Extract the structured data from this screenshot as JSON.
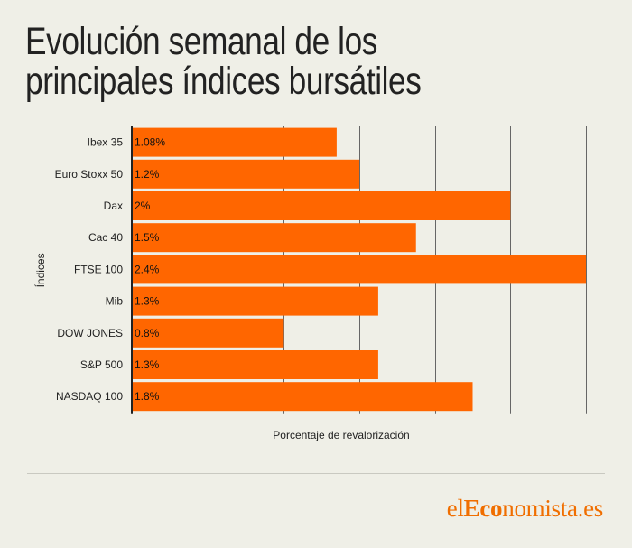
{
  "title": "Evolución semanal de los principales índices bursátiles",
  "brand": {
    "prefix": "el",
    "bold": "Eco",
    "suffix": "nomista.es",
    "color": "#f06e00"
  },
  "chart_data": {
    "type": "bar",
    "orientation": "horizontal",
    "categories": [
      "Ibex 35",
      "Euro Stoxx 50",
      "Dax",
      "Cac 40",
      "FTSE 100",
      "Mib",
      "DOW JONES",
      "S&P 500",
      "NASDAQ 100"
    ],
    "values": [
      1.08,
      1.2,
      2,
      1.5,
      2.4,
      1.3,
      0.8,
      1.3,
      1.8
    ],
    "data_labels": [
      "1.08%",
      "1.2%",
      "2%",
      "1.5%",
      "2.4%",
      "1.3%",
      "0.8%",
      "1.3%",
      "1.8%"
    ],
    "xlabel": "Porcentaje de revalorización",
    "ylabel": "Índices",
    "xlim": [
      0,
      2.4
    ],
    "grid": true,
    "bar_color": "#ff6600",
    "grid_color": "#666666"
  }
}
